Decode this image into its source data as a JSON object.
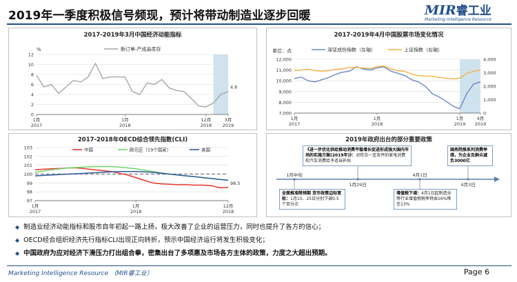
{
  "page": {
    "title": "2019年一季度积极信号频现，预计将带动制造业逐步回暖",
    "logo_main": "MIR",
    "logo_cn": "睿工业",
    "logo_sub": "Marketing Intelligence Resource",
    "footer": "Marketing Intelligence Resource （MIR睿工业）",
    "page_num": "Page 6",
    "colors": {
      "accent": "#1f4e8c",
      "highlight": "#cfe3ee",
      "china": "#e8332a",
      "euro": "#6fd36a",
      "us": "#2a5a9a",
      "oecd_base": "#8a8a8a",
      "stock_blue": "#6b88c4",
      "stock_orange": "#f5b041"
    }
  },
  "bullets": [
    "制造业经济动能指标和股市自年初起一路上扬，极大改善了企业的运营压力，同时也提升了各方的信心；",
    "OECD经合组织经济先行指标CLI出现正向转折，预示中国经济运行将发生积极变化；",
    "中国政府为应对经济下滑压力打出组合拳，密集出台了多项惠及市场各方主体的政策，力度之大超出预期。"
  ],
  "chart_data": [
    {
      "id": "momentum",
      "type": "line",
      "title": "2017-2019年3月中国经济动能指标",
      "ylabel": "%",
      "ylim": [
        0,
        12
      ],
      "yticks": [
        0,
        2,
        4,
        6,
        8,
        10,
        12
      ],
      "xticklabels": [
        [
          "1月",
          "2017"
        ],
        [
          "1月",
          "2018"
        ],
        [
          "12月",
          "2018"
        ],
        [
          "3月",
          "2019"
        ]
      ],
      "xtick_index": [
        0,
        12,
        23,
        26
      ],
      "legend": [
        "新订单-产成品库存"
      ],
      "end_label": "4.6",
      "highlight_range": [
        24,
        26
      ],
      "series": [
        {
          "name": "新订单-产成品库存",
          "values": [
            7.8,
            5.5,
            6.0,
            4.2,
            5.5,
            6.8,
            6.5,
            7.5,
            10.2,
            7.2,
            7.5,
            7.5,
            7.5,
            4.6,
            4.0,
            6.3,
            6.0,
            7.0,
            5.3,
            4.8,
            4.6,
            3.2,
            1.7,
            1.5,
            2.3,
            4.0,
            4.6
          ]
        }
      ]
    },
    {
      "id": "stocks",
      "type": "line",
      "title": "2017-2019年4月中国股票市场变化情况",
      "ylabel": "单位：点",
      "ylim_left": [
        7000,
        12000
      ],
      "yticks_left": [
        7000,
        8000,
        9000,
        10000,
        11000,
        12000
      ],
      "ylim_right": [
        0,
        4000
      ],
      "yticks_right": [
        0,
        1000,
        2000,
        3000,
        4000
      ],
      "xticklabels": [
        [
          "1月",
          "2017"
        ],
        [
          "1月",
          "2018"
        ],
        [
          "1月",
          "2019"
        ],
        [
          "4月",
          "2019"
        ]
      ],
      "xtick_index": [
        0,
        12,
        24,
        27
      ],
      "highlight_range": [
        24,
        27
      ],
      "series": [
        {
          "name": "深证成份指数（左轴）",
          "axis": "left",
          "values": [
            10200,
            10350,
            10000,
            9900,
            10100,
            10300,
            10600,
            10800,
            10900,
            11300,
            11100,
            11000,
            11200,
            11300,
            10900,
            10700,
            10500,
            10100,
            9900,
            9500,
            8800,
            8500,
            8100,
            7650,
            7400,
            8800,
            9700,
            9900
          ]
        },
        {
          "name": "上证指数（右轴）",
          "axis": "right",
          "values": [
            3150,
            3200,
            3250,
            3150,
            3120,
            3150,
            3250,
            3300,
            3380,
            3400,
            3350,
            3300,
            3450,
            3500,
            3300,
            3150,
            3100,
            2900,
            2800,
            2750,
            2750,
            2650,
            2600,
            2550,
            2600,
            2950,
            3100,
            3200
          ]
        }
      ]
    },
    {
      "id": "oecd",
      "type": "line",
      "title": "2017-2018年OECD综合领先指数(CLI)",
      "ylim": [
        97,
        103
      ],
      "yticks": [
        97,
        98,
        99,
        100,
        101,
        102,
        103
      ],
      "xticklabels": [
        [
          "1月",
          "2017"
        ],
        [
          "1月",
          "2018"
        ],
        [
          "12月",
          "2018"
        ]
      ],
      "xtick_index": [
        0,
        12,
        23
      ],
      "end_label": "98.5",
      "baseline": 100,
      "series": [
        {
          "name": "中国",
          "values": [
            100.5,
            100.55,
            100.6,
            100.65,
            100.7,
            100.7,
            100.6,
            100.5,
            100.4,
            100.3,
            100.1,
            99.9,
            99.6,
            99.3,
            99.0,
            98.9,
            98.85,
            98.8,
            98.8,
            98.75,
            98.75,
            98.7,
            98.45,
            98.5
          ]
        },
        {
          "name": "欧元区（19个国家）",
          "values": [
            100.2,
            100.35,
            100.5,
            100.6,
            100.7,
            100.75,
            100.8,
            100.85,
            100.85,
            100.85,
            100.8,
            100.7,
            100.6,
            100.45,
            100.3,
            100.15,
            100.0,
            99.9,
            99.8,
            99.7,
            99.6,
            99.5,
            99.4,
            99.3
          ]
        },
        {
          "name": "美国",
          "values": [
            99.8,
            99.85,
            99.9,
            99.95,
            100.0,
            100.05,
            100.1,
            100.15,
            100.2,
            100.25,
            100.3,
            100.3,
            100.3,
            100.25,
            100.2,
            100.1,
            100.0,
            99.9,
            99.8,
            99.7,
            99.6,
            99.5,
            99.4,
            99.3
          ]
        }
      ]
    },
    {
      "id": "policy",
      "type": "timeline",
      "title": "2019年政府出台的部分重要政策",
      "dates": [
        "1月中旬",
        "1月29日",
        "4月1日",
        "4月3日"
      ],
      "events": [
        {
          "title": "全面推准降预期  货币政策边际宽松：",
          "detail": "1月15、25日分别下调0.5个百分点"
        },
        {
          "title": "《进一步优化供给推动消费平稳增长促进形成强大国内市场的实施方案(2019年)》：",
          "detail": "对符合一定条件的家电消费和汽车消费给予适当补贴"
        },
        {
          "title": "增值税下调：",
          "detail": "4月1日起制造业等行业增值税税率将由16%降至13%"
        },
        {
          "title": "国务院推系列消费举措，为企业及群众减负3000亿",
          "detail": ""
        }
      ]
    }
  ]
}
